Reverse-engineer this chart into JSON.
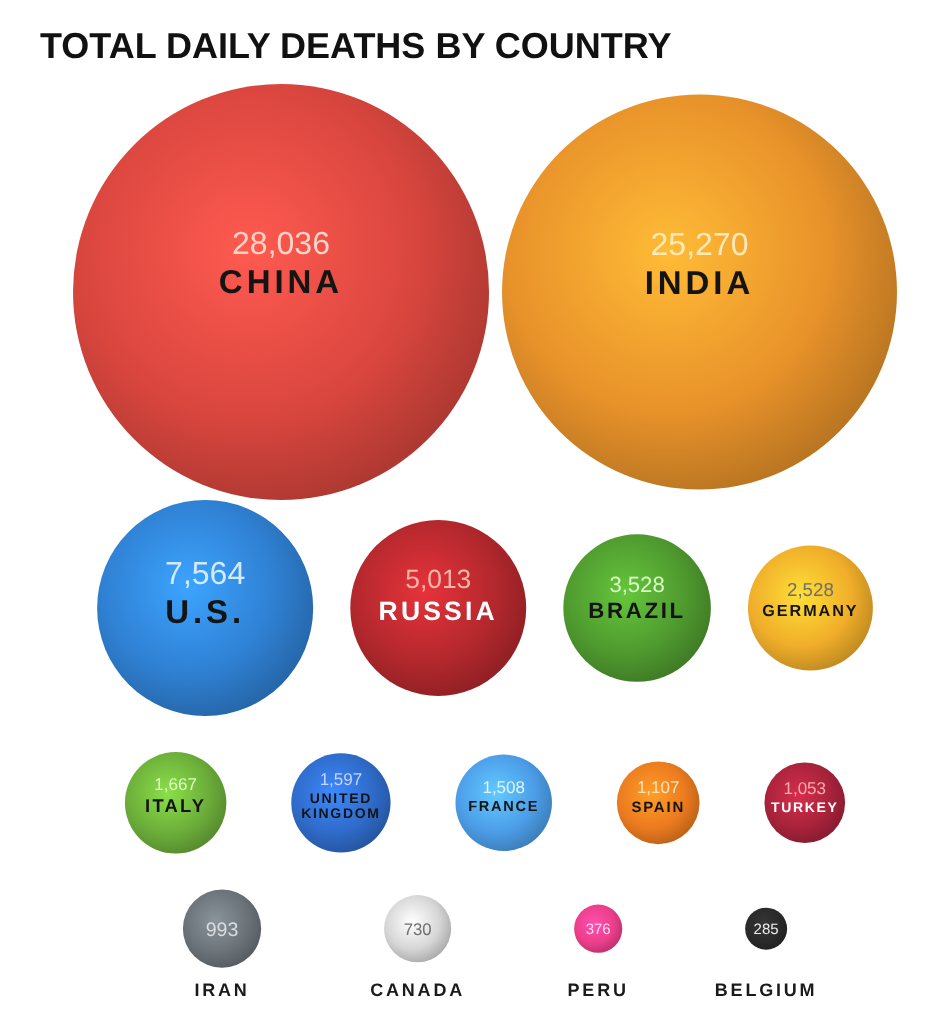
{
  "chart_data": {
    "type": "other",
    "title": "TOTAL DAILY DEATHS BY COUNTRY",
    "categories": [
      "CHINA",
      "INDIA",
      "U.S.",
      "RUSSIA",
      "BRAZIL",
      "GERMANY",
      "ITALY",
      "UNITED KINGDOM",
      "FRANCE",
      "SPAIN",
      "TURKEY",
      "IRAN",
      "CANADA",
      "PERU",
      "BELGIUM"
    ],
    "values": [
      28036,
      25270,
      7564,
      5013,
      3528,
      2528,
      1667,
      1597,
      1508,
      1107,
      1053,
      993,
      730,
      376,
      285
    ],
    "value_labels": [
      "28,036",
      "25,270",
      "7,564",
      "5,013",
      "3,528",
      "2,528",
      "1,667",
      "1,597",
      "1,508",
      "1,107",
      "1,053",
      "993",
      "730",
      "376",
      "285"
    ],
    "colors": [
      "#d9463e",
      "#e8922a",
      "#2f80d2",
      "#b3282d",
      "#4f9a2f",
      "#f0ae2a",
      "#6cae3a",
      "#2f6bc9",
      "#4c9de8",
      "#ec7b1f",
      "#a8233b",
      "#6b7379",
      "#d6d6d6",
      "#ec3e8a",
      "#2a2a2a"
    ]
  }
}
